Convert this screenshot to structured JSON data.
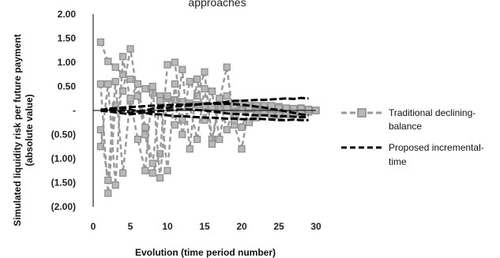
{
  "chart_data": {
    "type": "line",
    "title": "approaches",
    "xlabel": "Evolution (time period number)",
    "ylabel_lines": [
      "Simulated liquidity risk per future payment",
      "(absolute value)"
    ],
    "xlim": [
      0,
      30
    ],
    "ylim": [
      -2,
      2
    ],
    "x_ticks": [
      "0",
      "5",
      "10",
      "15",
      "20",
      "25",
      "30"
    ],
    "y_ticks": [
      "2.00",
      "1.50",
      "1.00",
      "0.50",
      "-",
      "(0.50)",
      "(1.00)",
      "(1.50)",
      "(2.00)"
    ],
    "grid": false,
    "legend_position": "right",
    "legend": [
      {
        "label_lines": [
          "Traditional declining-",
          "balance"
        ],
        "style": "gray-dashed-square"
      },
      {
        "label_lines": [
          "Proposed incremental-",
          "time"
        ],
        "style": "black-dashed"
      }
    ],
    "colors": {
      "traditional": "#9a9a9a",
      "proposed": "#000000"
    },
    "series": [
      {
        "group": "traditional",
        "x": [
          1,
          2,
          3,
          4,
          5,
          6,
          7,
          8,
          9,
          10,
          11,
          12,
          13,
          14,
          15,
          16,
          17,
          18,
          19,
          20,
          21,
          22,
          23,
          24,
          25,
          26,
          27,
          28,
          29,
          30
        ],
        "y": [
          1.42,
          1.02,
          0.9,
          0.75,
          0.65,
          0.55,
          0.45,
          0.36,
          0.3,
          0.25,
          0.22,
          0.18,
          0.15,
          0.12,
          0.1,
          0.08,
          0.06,
          0.05,
          0.04,
          0.03,
          0.03,
          0.02,
          0.02,
          0.02,
          0.01,
          0.01,
          0.01,
          0.01,
          0.0,
          0.0
        ]
      },
      {
        "group": "traditional",
        "x": [
          1,
          2,
          3,
          4,
          5,
          6,
          7,
          8,
          9,
          10,
          11,
          12,
          13,
          14,
          15,
          16,
          17,
          18,
          19,
          20,
          21,
          22,
          23,
          24,
          25,
          26,
          27,
          28,
          29,
          30
        ],
        "y": [
          0.55,
          -1.72,
          0.1,
          0.4,
          1.28,
          0.3,
          -0.5,
          -1.3,
          -0.9,
          0.95,
          1.0,
          -0.2,
          0.6,
          0.3,
          0.8,
          -0.6,
          0.2,
          0.9,
          -0.3,
          -0.8,
          0.1,
          -0.1,
          0.05,
          -0.05,
          0.08,
          0.03,
          -0.03,
          0.05,
          0.02,
          0.0
        ]
      },
      {
        "group": "traditional",
        "x": [
          1,
          2,
          3,
          4,
          5,
          6,
          7,
          8,
          9,
          10,
          11,
          12,
          13,
          14,
          15,
          16,
          17,
          18,
          19,
          20,
          21,
          22,
          23,
          24,
          25,
          26,
          27,
          28,
          29,
          30
        ],
        "y": [
          -0.75,
          0.55,
          -1.55,
          1.12,
          0.2,
          -0.6,
          -1.25,
          0.5,
          -1.4,
          0.3,
          -0.3,
          0.85,
          -0.8,
          0.65,
          -0.2,
          0.4,
          -0.6,
          0.3,
          -0.2,
          0.15,
          -0.25,
          0.1,
          -0.05,
          0.1,
          -0.1,
          0.05,
          -0.08,
          0.04,
          -0.03,
          0.0
        ]
      },
      {
        "group": "traditional",
        "x": [
          1,
          2,
          3,
          4,
          5,
          6,
          7,
          8,
          9,
          10,
          11,
          12,
          13,
          14,
          15,
          16,
          17,
          18,
          19,
          20,
          21,
          22,
          23,
          24,
          25,
          26,
          27,
          28,
          29,
          30
        ],
        "y": [
          -0.4,
          -1.45,
          0.6,
          -1.3,
          0.25,
          0.55,
          -0.35,
          -1.1,
          0.2,
          -1.25,
          0.55,
          -0.5,
          0.1,
          -0.6,
          0.45,
          -0.7,
          0.25,
          -0.4,
          0.1,
          -0.35,
          0.05,
          -0.15,
          0.1,
          -0.1,
          0.05,
          -0.08,
          0.04,
          -0.05,
          0.02,
          0.0
        ]
      },
      {
        "group": "proposed",
        "x": [
          1,
          2,
          3,
          4,
          5,
          6,
          7,
          8,
          9,
          10,
          11,
          12,
          13,
          14,
          15,
          16,
          17,
          18,
          19,
          20,
          21,
          22,
          23,
          24,
          25,
          26,
          27,
          28,
          29
        ],
        "y": [
          0.02,
          0.0,
          0.03,
          0.05,
          0.02,
          -0.02,
          0.0,
          0.04,
          0.06,
          0.05,
          0.08,
          0.1,
          0.1,
          0.12,
          0.14,
          0.15,
          0.16,
          0.18,
          0.2,
          0.2,
          0.21,
          0.22,
          0.22,
          0.23,
          0.24,
          0.25,
          0.24,
          0.26,
          0.25
        ]
      },
      {
        "group": "proposed",
        "x": [
          1,
          2,
          3,
          4,
          5,
          6,
          7,
          8,
          9,
          10,
          11,
          12,
          13,
          14,
          15,
          16,
          17,
          18,
          19,
          20,
          21,
          22,
          23,
          24,
          25,
          26,
          27,
          28,
          29
        ],
        "y": [
          -0.02,
          0.05,
          -0.03,
          0.0,
          -0.05,
          -0.02,
          -0.05,
          -0.08,
          -0.08,
          -0.1,
          -0.12,
          -0.12,
          -0.13,
          -0.14,
          -0.15,
          -0.15,
          -0.16,
          -0.17,
          -0.17,
          -0.18,
          -0.18,
          -0.17,
          -0.18,
          -0.19,
          -0.2,
          -0.2,
          -0.19,
          -0.2,
          -0.2
        ]
      },
      {
        "group": "proposed",
        "x": [
          1,
          2,
          3,
          4,
          5,
          6,
          7,
          8,
          9,
          10,
          11,
          12,
          13,
          14,
          15,
          16,
          17,
          18,
          19,
          20,
          21,
          22,
          23,
          24,
          25,
          26,
          27,
          28,
          29
        ],
        "y": [
          0.0,
          0.04,
          0.05,
          0.06,
          0.07,
          0.08,
          0.09,
          0.1,
          0.1,
          0.11,
          0.12,
          0.12,
          0.13,
          0.13,
          0.14,
          0.14,
          0.14,
          0.14,
          0.13,
          0.12,
          0.1,
          0.08,
          0.06,
          0.03,
          0.01,
          -0.02,
          -0.05,
          -0.08,
          -0.1
        ]
      },
      {
        "group": "proposed",
        "x": [
          1,
          2,
          3,
          4,
          5,
          6,
          7,
          8,
          9,
          10,
          11,
          12,
          13,
          14,
          15,
          16,
          17,
          18,
          19,
          20,
          21,
          22,
          23,
          24,
          25,
          26,
          27,
          28,
          29
        ],
        "y": [
          0.0,
          -0.02,
          -0.04,
          -0.06,
          -0.08,
          -0.06,
          -0.04,
          -0.03,
          -0.01,
          0.0,
          0.01,
          0.02,
          0.02,
          0.01,
          0.0,
          -0.02,
          -0.04,
          -0.06,
          -0.07,
          -0.08,
          -0.09,
          -0.1,
          -0.1,
          -0.11,
          -0.12,
          -0.12,
          -0.13,
          -0.14,
          -0.14
        ]
      }
    ]
  }
}
